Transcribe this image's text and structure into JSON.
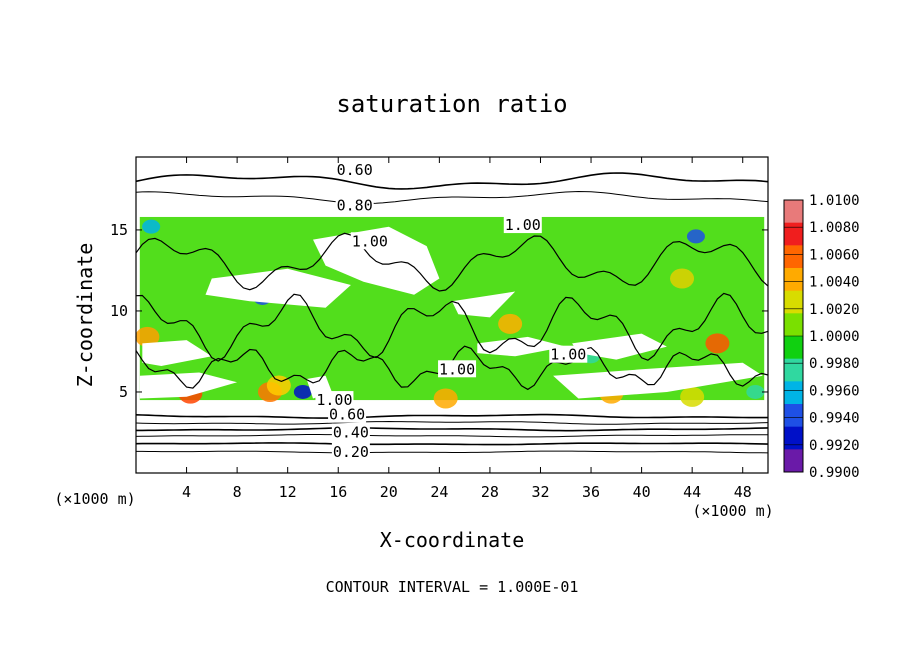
{
  "chart_data": {
    "type": "heatmap",
    "title": "saturation ratio",
    "xlabel": "X-coordinate",
    "ylabel": "Z-coordinate",
    "x_unit": "(×1000 m)",
    "z_unit": "(×1000 m)",
    "xlim": [
      0,
      50
    ],
    "ylim": [
      0,
      19.5
    ],
    "x_ticks": [
      4,
      8,
      12,
      16,
      20,
      24,
      28,
      32,
      36,
      40,
      44,
      48
    ],
    "y_ticks": [
      5,
      10,
      15
    ],
    "footer": "CONTOUR INTERVAL = 1.000E-01",
    "colorbar": {
      "range": [
        0.99,
        1.01
      ],
      "labels": [
        "1.0100",
        "1.0080",
        "1.0060",
        "1.0040",
        "1.0020",
        "1.0000",
        "0.9980",
        "0.9960",
        "0.9940",
        "0.9920",
        "0.9900"
      ],
      "colors": [
        "#e87a7a",
        "#f01e1e",
        "#ff6600",
        "#ffaa00",
        "#d8dc00",
        "#7ae000",
        "#10d010",
        "#30d8a0",
        "#00b4e6",
        "#1e50e6",
        "#0010c8",
        "#6a1aa8"
      ]
    },
    "contour_labels": [
      {
        "text": "0.60",
        "x": 17.3,
        "z": 18.7
      },
      {
        "text": "0.80",
        "x": 17.3,
        "z": 16.5
      },
      {
        "text": "1.00",
        "x": 30.6,
        "z": 15.3
      },
      {
        "text": "1.00",
        "x": 18.5,
        "z": 14.3
      },
      {
        "text": "1.00",
        "x": 25.4,
        "z": 6.4
      },
      {
        "text": "1.00",
        "x": 34.2,
        "z": 7.3
      },
      {
        "text": "1.00",
        "x": 15.7,
        "z": 4.5
      },
      {
        "text": "0.60",
        "x": 16.7,
        "z": 3.6
      },
      {
        "text": "0.40",
        "x": 17.0,
        "z": 2.5
      },
      {
        "text": "0.20",
        "x": 17.0,
        "z": 1.3
      }
    ],
    "contour_levels": [
      {
        "z": 18.0,
        "amp": 0.35
      },
      {
        "z": 17.0,
        "amp": 0.25
      },
      {
        "z": 3.5,
        "amp": 0.08
      },
      {
        "z": 3.1,
        "amp": 0.07
      },
      {
        "z": 2.7,
        "amp": 0.06
      },
      {
        "z": 2.3,
        "amp": 0.05
      },
      {
        "z": 1.8,
        "amp": 0.04
      },
      {
        "z": 1.3,
        "amp": 0.04
      }
    ]
  }
}
